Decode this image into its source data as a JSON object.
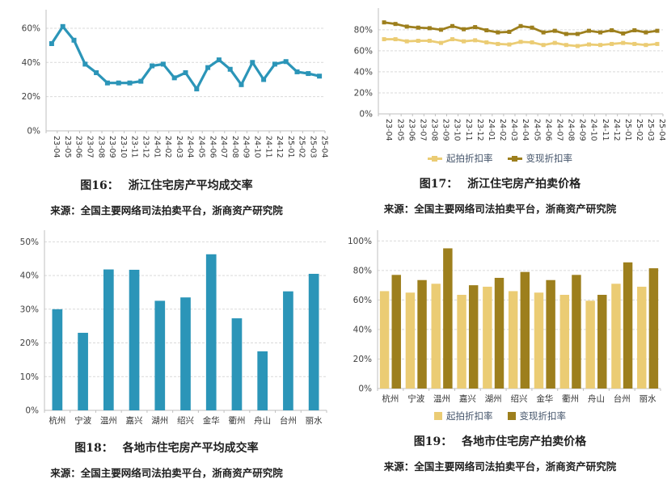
{
  "colors": {
    "teal": "#2b95b8",
    "gold_light": "#ebcc74",
    "gold_dark": "#9d7f1d",
    "grid": "#d9d9d9",
    "axis": "#bfbfbf",
    "tick_text": "#404040",
    "label_text": "#333333",
    "legend_text": "#44546a",
    "caption_text": "#1f1f1f"
  },
  "captions": [
    {
      "label": "图16：",
      "title": "浙江住宅房产平均成交率",
      "source": "来源：全国主要网络司法拍卖平台，浙商资产研究院"
    },
    {
      "label": "图17：",
      "title": "浙江住宅房产拍卖价格",
      "source": "来源：全国主要网络司法拍卖平台，浙商资产研究院"
    },
    {
      "label": "图18：",
      "title": "各地市住宅房产平均成交率",
      "source": "来源：全国主要网络司法拍卖平台，浙商资产研究院"
    },
    {
      "label": "图19：",
      "title": "各地市住宅房产拍卖价格",
      "source": "来源：全国主要网络司法拍卖平台，浙商资产研究院"
    }
  ],
  "chart_data": [
    {
      "id": "fig16",
      "type": "line",
      "title": "浙江住宅房产平均成交率",
      "xlabel": "",
      "ylabel": "",
      "ylim": [
        0,
        68
      ],
      "yticks": [
        0,
        20,
        40,
        60
      ],
      "grid": "dashed-horizontal",
      "legend": false,
      "x": [
        "23-04",
        "23-05",
        "23-06",
        "23-07",
        "23-08",
        "23-09",
        "23-10",
        "23-11",
        "23-12",
        "24-01",
        "24-02",
        "24-03",
        "24-04",
        "24-05",
        "24-06",
        "24-07",
        "24-08",
        "24-09",
        "24-10",
        "24-11",
        "24-12",
        "25-01",
        "25-02",
        "25-03",
        "25-04"
      ],
      "series": [
        {
          "name": "平均成交率",
          "color": "#2b95b8",
          "values": [
            51,
            61,
            53,
            39,
            34,
            28,
            28,
            28,
            29,
            38,
            39,
            31,
            34,
            24.5,
            37,
            41.5,
            36,
            27,
            40,
            30,
            39,
            40.5,
            34.5,
            33.5,
            32
          ]
        }
      ]
    },
    {
      "id": "fig17",
      "type": "line",
      "title": "浙江住宅房产拍卖价格",
      "xlabel": "",
      "ylabel": "",
      "ylim": [
        0,
        96
      ],
      "yticks": [
        0,
        20,
        40,
        60,
        80
      ],
      "grid": "dashed-horizontal",
      "legend": true,
      "legend_position": "bottom",
      "x": [
        "23-04",
        "23-05",
        "23-06",
        "23-07",
        "23-08",
        "23-09",
        "23-10",
        "23-11",
        "23-12",
        "24-01",
        "24-02",
        "24-03",
        "24-04",
        "24-05",
        "24-06",
        "24-07",
        "24-08",
        "24-09",
        "24-10",
        "24-11",
        "24-12",
        "25-01",
        "25-02",
        "25-03",
        "25-04"
      ],
      "series": [
        {
          "name": "起拍折扣率",
          "color": "#ebcc74",
          "values": [
            71,
            71,
            69,
            69.5,
            69.5,
            67.5,
            71,
            69,
            70,
            68,
            66.5,
            66,
            68.5,
            68,
            65.5,
            67.5,
            65.5,
            64.5,
            66,
            65.5,
            66.5,
            67.5,
            66.5,
            65.5,
            66.5
          ]
        },
        {
          "name": "变现折扣率",
          "color": "#9d7f1d",
          "values": [
            87,
            85.5,
            83,
            82,
            81.5,
            80,
            83.5,
            80.5,
            82.5,
            79.5,
            77.5,
            78,
            83.5,
            82,
            77.5,
            79,
            76,
            76,
            79,
            77.5,
            79.5,
            76.5,
            79.5,
            77.5,
            79
          ]
        }
      ]
    },
    {
      "id": "fig18",
      "type": "bar",
      "title": "各地市住宅房产平均成交率",
      "xlabel": "",
      "ylabel": "",
      "ylim": [
        0,
        52
      ],
      "yticks": [
        0,
        10,
        20,
        30,
        40,
        50
      ],
      "grid": "dashed-horizontal",
      "legend": false,
      "categories": [
        "杭州",
        "宁波",
        "温州",
        "嘉兴",
        "湖州",
        "绍兴",
        "金华",
        "衢州",
        "舟山",
        "台州",
        "丽水"
      ],
      "series": [
        {
          "name": "平均成交率",
          "color": "#2b95b8",
          "values": [
            30,
            23,
            41.8,
            41.7,
            32.5,
            33.5,
            46.3,
            27.3,
            17.5,
            35.3,
            40.5
          ]
        }
      ]
    },
    {
      "id": "fig19",
      "type": "bar",
      "title": "各地市住宅房产拍卖价格",
      "xlabel": "",
      "ylabel": "",
      "ylim": [
        0,
        104
      ],
      "yticks": [
        0,
        20,
        40,
        60,
        80,
        100
      ],
      "grid": "dashed-horizontal",
      "legend": true,
      "legend_position": "bottom",
      "categories": [
        "杭州",
        "宁波",
        "温州",
        "嘉兴",
        "湖州",
        "绍兴",
        "金华",
        "衢州",
        "舟山",
        "台州",
        "丽水"
      ],
      "series": [
        {
          "name": "起拍折扣率",
          "color": "#ebcc74",
          "values": [
            66,
            65,
            71,
            63.5,
            69,
            66,
            65,
            63.5,
            59.5,
            71,
            69
          ]
        },
        {
          "name": "变现折扣率",
          "color": "#9d7f1d",
          "values": [
            77,
            73.5,
            95,
            70,
            75,
            79,
            73.5,
            77,
            63.5,
            85.5,
            81.5
          ]
        }
      ]
    }
  ]
}
